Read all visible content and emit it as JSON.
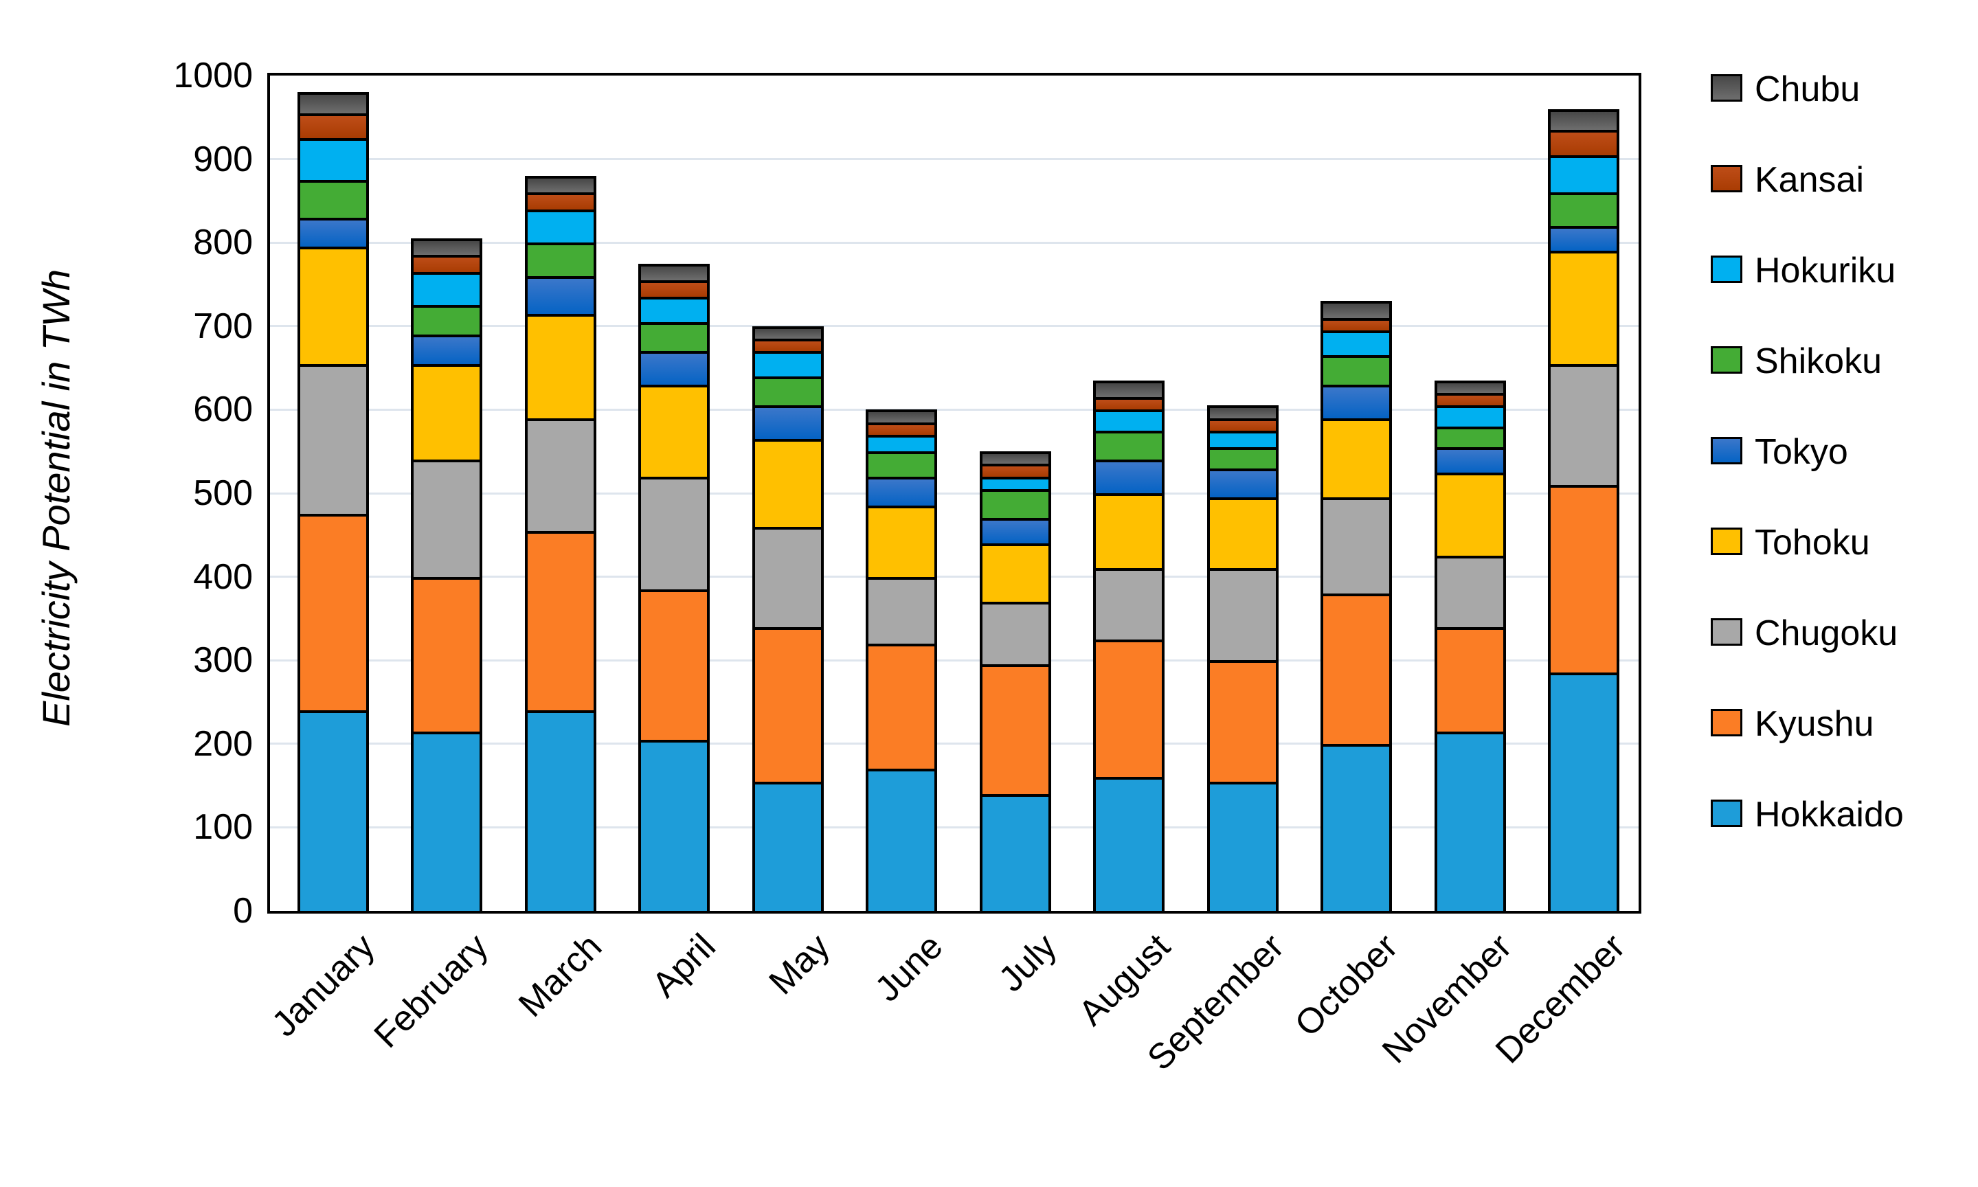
{
  "chart_data": {
    "type": "bar",
    "stacked": true,
    "title": "",
    "xlabel": "",
    "ylabel": "Electricity Potential in TWh",
    "ylim": [
      0,
      1000
    ],
    "ytick_step": 100,
    "ytick_labels": [
      "0",
      "100",
      "200",
      "300",
      "400",
      "500",
      "600",
      "700",
      "800",
      "900",
      "1000"
    ],
    "grid": "horizontal",
    "gridline_color": "#dee5ed",
    "legend_position": "right",
    "legend_order_top_to_bottom": [
      "Chubu",
      "Kansai",
      "Hokuriku",
      "Shikoku",
      "Tokyo",
      "Tohoku",
      "Chugoku",
      "Kyushu",
      "Hokkaido"
    ],
    "categories": [
      "January",
      "February",
      "March",
      "April",
      "May",
      "June",
      "July",
      "August",
      "September",
      "October",
      "November",
      "December"
    ],
    "series": [
      {
        "name": "Hokkaido",
        "color": "#1e9dd9",
        "values": [
          240,
          215,
          240,
          205,
          155,
          170,
          140,
          160,
          155,
          200,
          215,
          285
        ]
      },
      {
        "name": "Kyushu",
        "color": "#fb7d25",
        "values": [
          235,
          185,
          215,
          180,
          185,
          150,
          155,
          165,
          145,
          180,
          125,
          225
        ]
      },
      {
        "name": "Chugoku",
        "color": "#a8a8a8",
        "values": [
          180,
          140,
          135,
          135,
          120,
          80,
          75,
          85,
          110,
          115,
          85,
          145
        ]
      },
      {
        "name": "Tohoku",
        "color": "#ffc000",
        "values": [
          140,
          115,
          125,
          110,
          105,
          85,
          70,
          90,
          85,
          95,
          100,
          135
        ]
      },
      {
        "name": "Tokyo",
        "color": "#3b77ca",
        "color2": "#0563c4",
        "values": [
          35,
          35,
          45,
          40,
          40,
          35,
          30,
          40,
          35,
          40,
          30,
          30
        ]
      },
      {
        "name": "Shikoku",
        "color": "#44ac35",
        "values": [
          45,
          35,
          40,
          35,
          35,
          30,
          35,
          35,
          25,
          35,
          25,
          40
        ]
      },
      {
        "name": "Hokuriku",
        "color": "#00b0f0",
        "values": [
          50,
          40,
          40,
          30,
          30,
          20,
          15,
          25,
          20,
          30,
          25,
          45
        ]
      },
      {
        "name": "Kansai",
        "color": "#be4d18",
        "color2": "#a93c03",
        "values": [
          30,
          20,
          20,
          20,
          15,
          15,
          15,
          15,
          15,
          15,
          15,
          30
        ]
      },
      {
        "name": "Chubu",
        "color": "#474747",
        "color2": "#6e6e6e",
        "values": [
          25,
          20,
          20,
          20,
          15,
          15,
          15,
          20,
          15,
          20,
          15,
          25
        ]
      }
    ],
    "monthly_totals": [
      980,
      805,
      880,
      775,
      700,
      600,
      550,
      635,
      605,
      730,
      635,
      960
    ]
  }
}
